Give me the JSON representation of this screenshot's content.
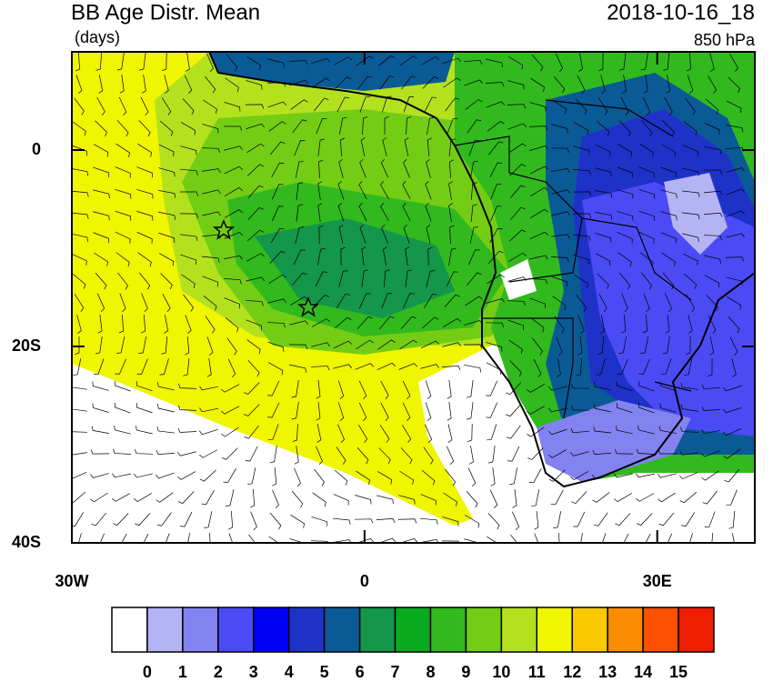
{
  "map": {
    "title": "BB Age Distr. Mean",
    "units": "(days)",
    "time": "2018-10-16_18",
    "level": "850 hPa",
    "xlim": [
      -30,
      40
    ],
    "ylim": [
      -40,
      10
    ],
    "xticks": [
      {
        "value": -30,
        "label": "30W"
      },
      {
        "value": 0,
        "label": "0"
      },
      {
        "value": 30,
        "label": "30E"
      }
    ],
    "yticks": [
      {
        "value": 0,
        "label": "0"
      },
      {
        "value": -20,
        "label": "20S"
      },
      {
        "value": -40,
        "label": "40S"
      }
    ]
  },
  "colorbar": {
    "colors": [
      "#ffffff",
      "#b4b4f5",
      "#8282f0",
      "#4b4bf5",
      "#0000f5",
      "#1e32c8",
      "#0a5a96",
      "#14964b",
      "#0aaa1e",
      "#32b91e",
      "#73cd14",
      "#b4e11e",
      "#f0f500",
      "#fac800",
      "#fa8c00",
      "#fa5000",
      "#f01e00"
    ],
    "labels": [
      0,
      1,
      2,
      3,
      4,
      5,
      6,
      7,
      8,
      9,
      10,
      11,
      12,
      13,
      14,
      15
    ]
  }
}
